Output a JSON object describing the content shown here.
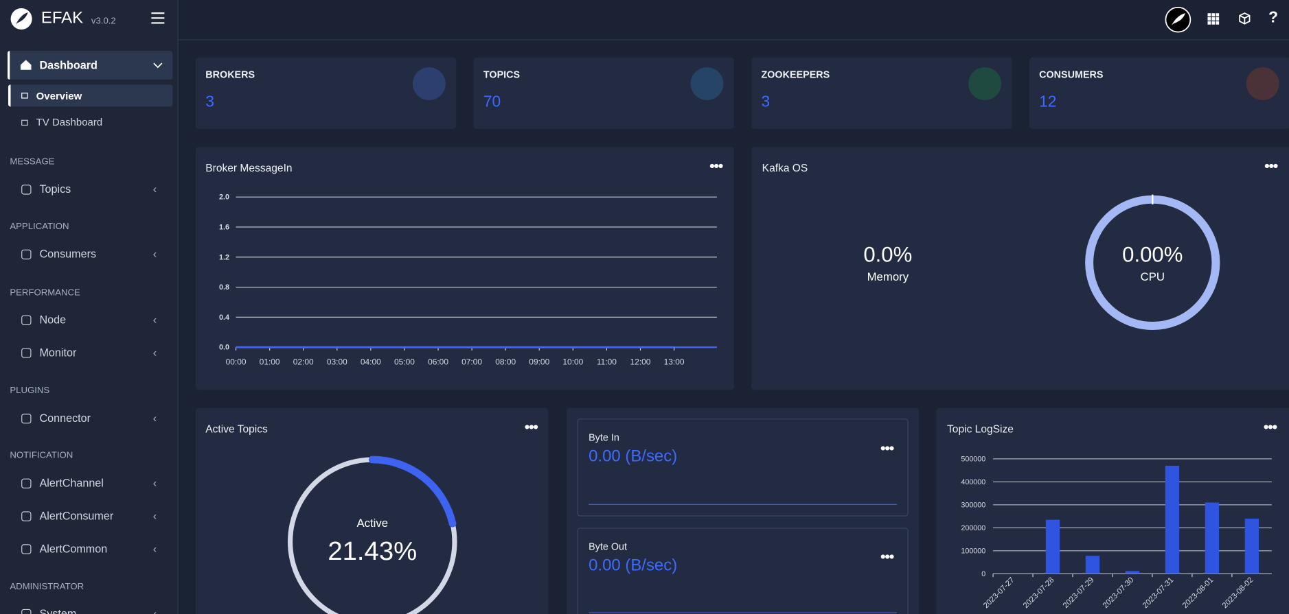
{
  "header": {
    "brand": "EFAK",
    "version": "v3.0.2"
  },
  "sidebar": {
    "dashboard": "Dashboard",
    "submenu": [
      "Overview",
      "TV Dashboard"
    ],
    "sections": [
      {
        "title": "MESSAGE",
        "items": [
          "Topics"
        ]
      },
      {
        "title": "APPLICATION",
        "items": [
          "Consumers"
        ]
      },
      {
        "title": "PERFORMANCE",
        "items": [
          "Node",
          "Monitor"
        ]
      },
      {
        "title": "PLUGINS",
        "items": [
          "Connector"
        ]
      },
      {
        "title": "NOTIFICATION",
        "items": [
          "AlertChannel",
          "AlertConsumer",
          "AlertCommon"
        ]
      },
      {
        "title": "ADMINISTRATOR",
        "items": [
          "System"
        ]
      }
    ]
  },
  "stats": [
    {
      "label": "BROKERS",
      "value": 3
    },
    {
      "label": "TOPICS",
      "value": 70
    },
    {
      "label": "ZOOKEEPERS",
      "value": 3
    },
    {
      "label": "CONSUMERS",
      "value": 12
    }
  ],
  "kafka_os": {
    "title": "Kafka OS",
    "memory_value": "0.0%",
    "memory_label": "Memory",
    "cpu_value": "0.00%",
    "cpu_label": "CPU"
  },
  "throughput": [
    {
      "label": "Byte In",
      "value": "0.00 (B/sec)"
    },
    {
      "label": "Byte Out",
      "value": "0.00 (B/sec)"
    }
  ],
  "chart_data": [
    {
      "type": "line",
      "title": "Broker MessageIn",
      "categories": [
        "00:00",
        "01:00",
        "02:00",
        "03:00",
        "04:00",
        "05:00",
        "06:00",
        "07:00",
        "08:00",
        "09:00",
        "10:00",
        "11:00",
        "12:00",
        "13:00"
      ],
      "values": [
        0,
        0,
        0,
        0,
        0,
        0,
        0,
        0,
        0,
        0,
        0,
        0,
        0,
        0
      ],
      "color": "#3d63f0",
      "ylim": [
        0,
        2
      ],
      "yticks": [
        {
          "value": 0,
          "label": "0.0"
        },
        {
          "value": 0.4,
          "label": "0.4"
        },
        {
          "value": 0.8,
          "label": "0.8"
        },
        {
          "value": 1.2,
          "label": "1.2"
        },
        {
          "value": 1.6,
          "label": "1.6"
        },
        {
          "value": 2,
          "label": "2.0"
        }
      ],
      "grid": true
    },
    {
      "type": "gauge",
      "title": "Active Topics",
      "label": "Active",
      "values": [
        21.43
      ],
      "value_labels": [
        "21.43%"
      ],
      "color": "#3d63f0"
    },
    {
      "type": "bar",
      "title": "Topic LogSize",
      "categories": [
        "2023-07-27",
        "2023-07-28",
        "2023-07-29",
        "2023-07-30",
        "2023-07-31",
        "2023-08-01",
        "2023-08-02"
      ],
      "values": [
        0,
        235000,
        78000,
        12000,
        470000,
        310000,
        240000
      ],
      "color": "#2f55e0",
      "ylim": [
        0,
        500000
      ],
      "yticks": [
        0,
        100000,
        200000,
        300000,
        400000,
        500000
      ],
      "grid": true
    }
  ]
}
